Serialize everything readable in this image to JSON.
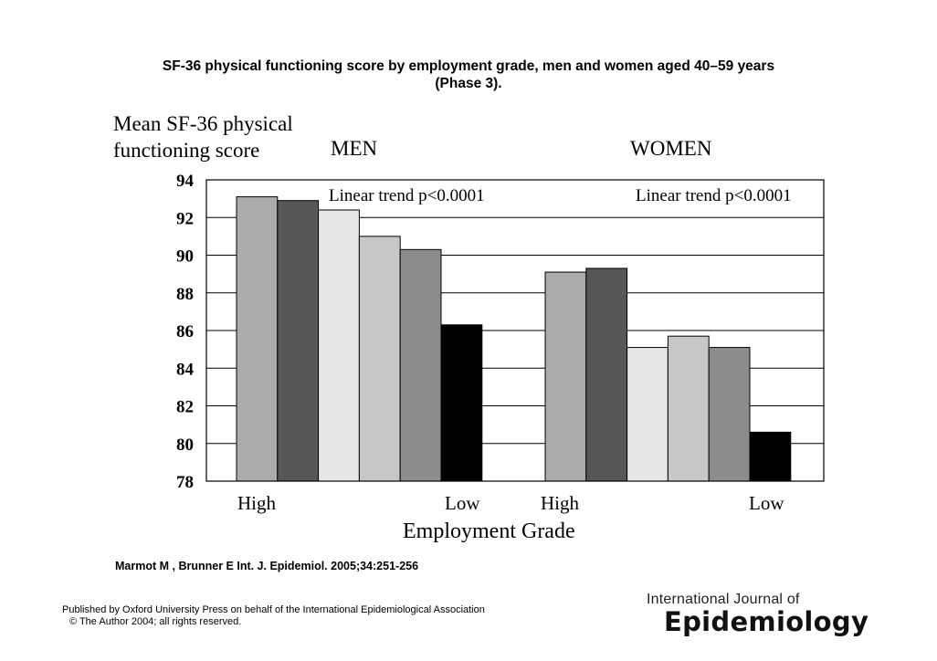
{
  "title_line1": "SF-36 physical functioning score by employment grade, men and women aged 40–59 years",
  "title_line2": "(Phase 3).",
  "citation": "Marmot M , Brunner E Int. J. Epidemiol. 2005;34:251-256",
  "publisher_line1": "Published by Oxford University Press on behalf of the International Epidemiological Association",
  "publisher_line2": "© The Author 2004; all rights reserved.",
  "journal_name_small": "International Journal of",
  "journal_name_big": "Epidemiology",
  "chart_data": {
    "type": "bar",
    "ylabel_line1": "Mean SF-36 physical",
    "ylabel_line2": "functioning score",
    "xlabel": "Employment Grade",
    "ylim": [
      78,
      94
    ],
    "yticks": [
      94,
      92,
      90,
      88,
      86,
      84,
      82,
      80,
      78
    ],
    "grid": true,
    "groups": [
      {
        "name": "MEN",
        "annotation": "Linear trend p<0.0001",
        "high_label": "High",
        "low_label": "Low",
        "values": [
          93.1,
          92.9,
          92.4,
          91.0,
          90.3,
          86.3
        ]
      },
      {
        "name": "WOMEN",
        "annotation": "Linear trend p<0.0001",
        "high_label": "High",
        "low_label": "Low",
        "values": [
          89.1,
          89.3,
          85.1,
          85.7,
          85.1,
          80.6
        ]
      }
    ],
    "bar_colors": [
      "#ababab",
      "#575757",
      "#e6e6e6",
      "#c7c7c7",
      "#8c8c8c",
      "#000000"
    ]
  }
}
